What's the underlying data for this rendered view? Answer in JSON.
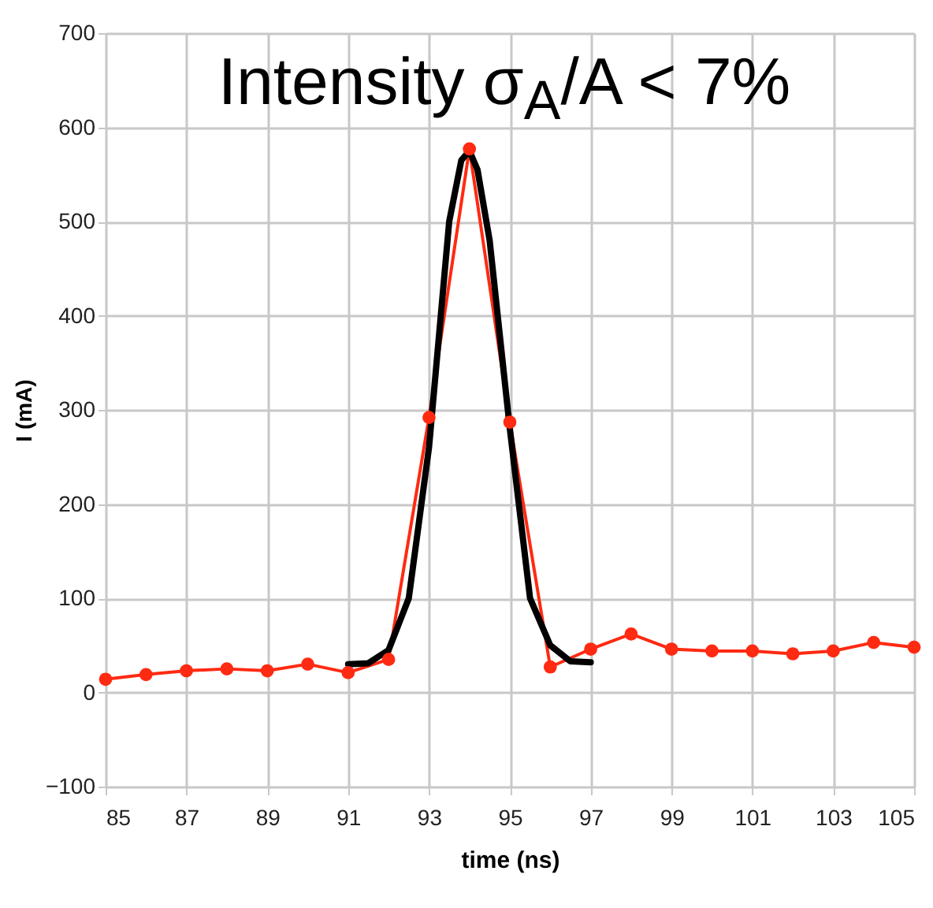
{
  "chart_data": {
    "type": "line",
    "title": "Intensity σ$_{A}$/A < 7%",
    "xlabel": "time (ns)",
    "ylabel": "I (mA)",
    "xlim": [
      85,
      105
    ],
    "xticks": [
      85,
      87,
      89,
      91,
      93,
      95,
      97,
      99,
      101,
      103,
      105
    ],
    "ylim": [
      -100,
      700
    ],
    "yticks": [
      -100,
      0,
      100,
      200,
      300,
      400,
      500,
      600,
      700
    ],
    "grid": true,
    "line_style": "solid",
    "series": [
      {
        "color": "#ff2a12",
        "marker": "circle",
        "x": [
          85,
          86,
          87,
          88,
          89,
          90,
          91,
          92,
          93,
          94,
          95,
          96,
          97,
          98,
          99,
          100,
          101,
          102,
          103,
          104,
          105
        ],
        "values": [
          14,
          19,
          23,
          25,
          23,
          30,
          21,
          35,
          292,
          577,
          287,
          27,
          46,
          62,
          46,
          44,
          44,
          41,
          44,
          53,
          48
        ]
      },
      {
        "color": "#000000",
        "marker": "none",
        "x": [
          91,
          91.5,
          92,
          92.5,
          93,
          93.5,
          93.8,
          94,
          94.2,
          94.5,
          95,
          95.5,
          96,
          96.5,
          97
        ],
        "values": [
          30,
          31,
          45,
          100,
          260,
          500,
          565,
          575,
          555,
          480,
          280,
          100,
          50,
          33,
          32
        ]
      }
    ]
  }
}
